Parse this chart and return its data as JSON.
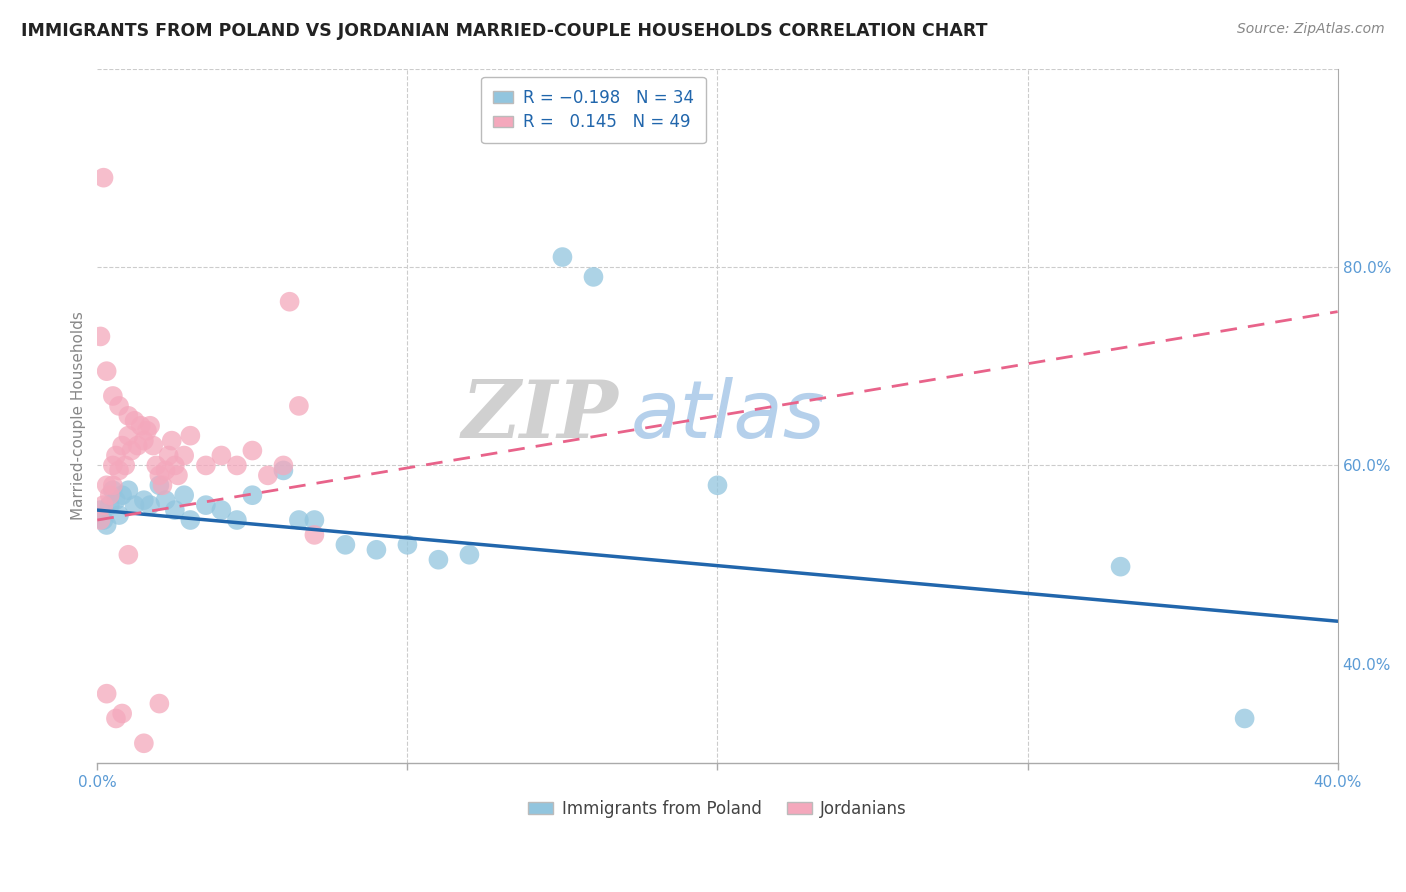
{
  "title": "IMMIGRANTS FROM POLAND VS JORDANIAN MARRIED-COUPLE HOUSEHOLDS CORRELATION CHART",
  "source": "Source: ZipAtlas.com",
  "ylabel_label": "Married-couple Households",
  "legend_label1": "Immigrants from Poland",
  "legend_label2": "Jordanians",
  "R1": -0.198,
  "N1": 34,
  "R2": 0.145,
  "N2": 49,
  "blue_color": "#92c5de",
  "pink_color": "#f4a8bc",
  "blue_line_color": "#2166ac",
  "pink_line_color": "#e8638a",
  "watermark_zip": "ZIP",
  "watermark_atlas": "atlas",
  "xmin": 0.0,
  "xmax": 0.4,
  "ymin": 0.3,
  "ymax": 1.0,
  "yaxis_min": 0.4,
  "yaxis_max": 1.0,
  "blue_line_y0": 0.555,
  "blue_line_y1": 0.443,
  "pink_line_y0": 0.545,
  "pink_line_y1": 0.755,
  "blue_points": [
    [
      0.001,
      0.555
    ],
    [
      0.002,
      0.545
    ],
    [
      0.003,
      0.54
    ],
    [
      0.004,
      0.56
    ],
    [
      0.005,
      0.575
    ],
    [
      0.006,
      0.565
    ],
    [
      0.007,
      0.55
    ],
    [
      0.008,
      0.57
    ],
    [
      0.01,
      0.575
    ],
    [
      0.012,
      0.56
    ],
    [
      0.015,
      0.565
    ],
    [
      0.017,
      0.56
    ],
    [
      0.02,
      0.58
    ],
    [
      0.022,
      0.565
    ],
    [
      0.025,
      0.555
    ],
    [
      0.028,
      0.57
    ],
    [
      0.03,
      0.545
    ],
    [
      0.035,
      0.56
    ],
    [
      0.04,
      0.555
    ],
    [
      0.045,
      0.545
    ],
    [
      0.05,
      0.57
    ],
    [
      0.06,
      0.595
    ],
    [
      0.065,
      0.545
    ],
    [
      0.07,
      0.545
    ],
    [
      0.08,
      0.52
    ],
    [
      0.09,
      0.515
    ],
    [
      0.1,
      0.52
    ],
    [
      0.11,
      0.505
    ],
    [
      0.12,
      0.51
    ],
    [
      0.15,
      0.81
    ],
    [
      0.16,
      0.79
    ],
    [
      0.2,
      0.58
    ],
    [
      0.33,
      0.498
    ],
    [
      0.37,
      0.345
    ]
  ],
  "pink_points": [
    [
      0.001,
      0.545
    ],
    [
      0.002,
      0.56
    ],
    [
      0.003,
      0.58
    ],
    [
      0.004,
      0.57
    ],
    [
      0.005,
      0.6
    ],
    [
      0.005,
      0.58
    ],
    [
      0.006,
      0.61
    ],
    [
      0.007,
      0.595
    ],
    [
      0.008,
      0.62
    ],
    [
      0.009,
      0.6
    ],
    [
      0.01,
      0.63
    ],
    [
      0.011,
      0.615
    ],
    [
      0.012,
      0.645
    ],
    [
      0.013,
      0.62
    ],
    [
      0.014,
      0.64
    ],
    [
      0.015,
      0.625
    ],
    [
      0.016,
      0.635
    ],
    [
      0.017,
      0.64
    ],
    [
      0.018,
      0.62
    ],
    [
      0.019,
      0.6
    ],
    [
      0.02,
      0.59
    ],
    [
      0.021,
      0.58
    ],
    [
      0.022,
      0.595
    ],
    [
      0.023,
      0.61
    ],
    [
      0.024,
      0.625
    ],
    [
      0.025,
      0.6
    ],
    [
      0.026,
      0.59
    ],
    [
      0.028,
      0.61
    ],
    [
      0.03,
      0.63
    ],
    [
      0.035,
      0.6
    ],
    [
      0.04,
      0.61
    ],
    [
      0.045,
      0.6
    ],
    [
      0.05,
      0.615
    ],
    [
      0.055,
      0.59
    ],
    [
      0.06,
      0.6
    ],
    [
      0.062,
      0.765
    ],
    [
      0.065,
      0.66
    ],
    [
      0.001,
      0.73
    ],
    [
      0.003,
      0.695
    ],
    [
      0.005,
      0.67
    ],
    [
      0.007,
      0.66
    ],
    [
      0.01,
      0.65
    ],
    [
      0.003,
      0.37
    ],
    [
      0.006,
      0.345
    ],
    [
      0.008,
      0.35
    ],
    [
      0.01,
      0.51
    ],
    [
      0.02,
      0.36
    ],
    [
      0.015,
      0.32
    ],
    [
      0.07,
      0.53
    ],
    [
      0.002,
      0.89
    ]
  ]
}
